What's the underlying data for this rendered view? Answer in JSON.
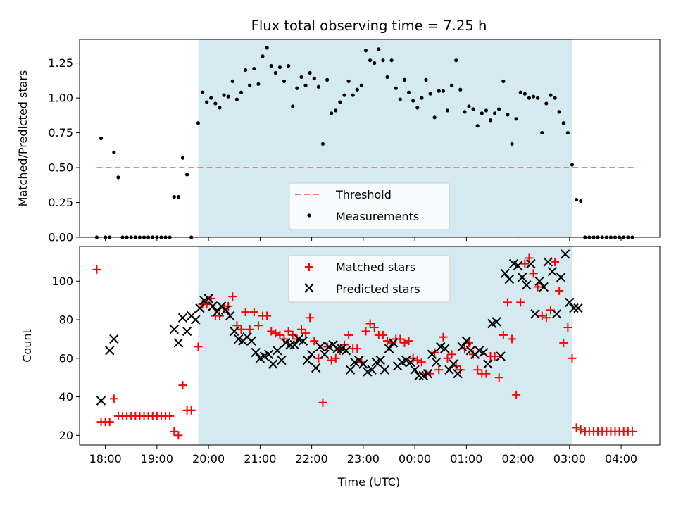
{
  "chart_data": [
    {
      "type": "scatter",
      "title": "Flux total observing time = 7.25 h",
      "xlabel": "",
      "ylabel": "Matched/Predicted stars",
      "ylim": [
        0,
        1.42
      ],
      "yticks": [
        "0.00",
        "0.25",
        "0.50",
        "0.75",
        "1.00",
        "1.25"
      ],
      "shaded_region": {
        "from": "19:48",
        "to": "03:03",
        "color": "#d4eaf0"
      },
      "threshold": {
        "name": "Threshold",
        "y": 0.5,
        "from": "17:50",
        "to": "04:15",
        "style": "dashed",
        "color": "#f08080"
      },
      "legend": {
        "placement": "lower-center",
        "entries": [
          "Threshold",
          "Measurements"
        ]
      },
      "series": [
        {
          "name": "Measurements",
          "marker": "dot",
          "color": "#000000",
          "x": [
            "17:50",
            "17:55",
            "18:00",
            "18:05",
            "18:10",
            "18:15",
            "18:20",
            "18:25",
            "18:30",
            "18:35",
            "18:40",
            "18:45",
            "18:50",
            "18:55",
            "19:00",
            "19:05",
            "19:10",
            "19:15",
            "19:20",
            "19:25",
            "19:30",
            "19:35",
            "19:40",
            "19:48",
            "19:53",
            "19:58",
            "20:03",
            "20:08",
            "20:13",
            "20:18",
            "20:23",
            "20:28",
            "20:33",
            "20:38",
            "20:43",
            "20:48",
            "20:53",
            "20:58",
            "21:03",
            "21:08",
            "21:13",
            "21:18",
            "21:23",
            "21:28",
            "21:33",
            "21:38",
            "21:43",
            "21:48",
            "21:53",
            "21:58",
            "22:03",
            "22:08",
            "22:13",
            "22:18",
            "22:23",
            "22:28",
            "22:33",
            "22:38",
            "22:43",
            "22:48",
            "22:53",
            "22:58",
            "23:03",
            "23:08",
            "23:13",
            "23:18",
            "23:23",
            "23:28",
            "23:33",
            "23:38",
            "23:43",
            "23:48",
            "23:53",
            "23:58",
            "00:03",
            "00:08",
            "00:13",
            "00:18",
            "00:23",
            "00:28",
            "00:33",
            "00:38",
            "00:43",
            "00:48",
            "00:53",
            "00:58",
            "01:03",
            "01:08",
            "01:13",
            "01:18",
            "01:23",
            "01:28",
            "01:33",
            "01:38",
            "01:43",
            "01:48",
            "01:53",
            "01:58",
            "02:03",
            "02:08",
            "02:13",
            "02:18",
            "02:23",
            "02:28",
            "02:33",
            "02:38",
            "02:43",
            "02:48",
            "02:53",
            "02:58",
            "03:03",
            "03:08",
            "03:13",
            "03:18",
            "03:23",
            "03:28",
            "03:33",
            "03:38",
            "03:43",
            "03:48",
            "03:53",
            "03:58",
            "04:03",
            "04:08",
            "04:13"
          ],
          "y": [
            0.0,
            0.71,
            0.0,
            0.0,
            0.61,
            0.43,
            0.0,
            0.0,
            0.0,
            0.0,
            0.0,
            0.0,
            0.0,
            0.0,
            0.0,
            0.0,
            0.0,
            0.0,
            0.29,
            0.29,
            0.57,
            0.45,
            0.0,
            0.82,
            1.04,
            0.97,
            1.0,
            0.96,
            0.93,
            1.02,
            1.01,
            1.12,
            0.99,
            1.04,
            1.2,
            1.09,
            1.21,
            1.1,
            1.3,
            1.36,
            1.23,
            1.18,
            1.22,
            1.12,
            1.23,
            0.94,
            1.07,
            1.15,
            1.09,
            1.18,
            1.14,
            1.08,
            0.67,
            1.13,
            0.89,
            0.91,
            0.97,
            1.02,
            1.12,
            1.02,
            1.06,
            1.09,
            1.34,
            1.27,
            1.25,
            1.35,
            1.27,
            1.15,
            1.27,
            1.07,
            0.99,
            1.13,
            1.04,
            0.98,
            0.93,
            1.0,
            1.13,
            1.03,
            0.86,
            1.05,
            1.05,
            0.91,
            1.09,
            1.27,
            1.06,
            0.9,
            0.94,
            0.92,
            0.8,
            0.89,
            0.91,
            0.84,
            0.89,
            0.92,
            1.12,
            0.88,
            0.67,
            0.85,
            1.04,
            1.03,
            1.0,
            1.01,
            1.0,
            0.75,
            0.96,
            1.02,
            1.0,
            0.9,
            0.82,
            0.75,
            0.52,
            0.27,
            0.26,
            0.0,
            0.0,
            0.0,
            0.0,
            0.0,
            0.0,
            0.0,
            0.0,
            0.0,
            0.0,
            0.0,
            0.0
          ]
        }
      ]
    },
    {
      "type": "scatter",
      "title": "",
      "xlabel": "Time (UTC)",
      "ylabel": "Count",
      "xlim": [
        "17:30",
        "04:45"
      ],
      "ylim": [
        15,
        118
      ],
      "yticks": [
        "20",
        "40",
        "60",
        "80",
        "100"
      ],
      "xticks": [
        "18:00",
        "19:00",
        "20:00",
        "21:00",
        "22:00",
        "23:00",
        "00:00",
        "01:00",
        "02:00",
        "03:00",
        "04:00"
      ],
      "shaded_region": {
        "from": "19:48",
        "to": "03:03",
        "color": "#d4eaf0"
      },
      "legend": {
        "placement": "top-center",
        "entries": [
          "Matched stars",
          "Predicted stars"
        ]
      },
      "series": [
        {
          "name": "Matched stars",
          "marker": "plus",
          "color": "#ff0000",
          "x": [
            "17:50",
            "17:55",
            "18:00",
            "18:05",
            "18:10",
            "18:15",
            "18:20",
            "18:25",
            "18:30",
            "18:35",
            "18:40",
            "18:45",
            "18:50",
            "18:55",
            "19:00",
            "19:05",
            "19:10",
            "19:15",
            "19:20",
            "19:25",
            "19:30",
            "19:35",
            "19:40",
            "19:48",
            "19:53",
            "19:58",
            "20:03",
            "20:08",
            "20:13",
            "20:18",
            "20:23",
            "20:28",
            "20:33",
            "20:38",
            "20:43",
            "20:48",
            "20:53",
            "20:58",
            "21:03",
            "21:08",
            "21:13",
            "21:18",
            "21:23",
            "21:28",
            "21:33",
            "21:38",
            "21:43",
            "21:48",
            "21:53",
            "21:58",
            "22:03",
            "22:08",
            "22:13",
            "22:18",
            "22:23",
            "22:28",
            "22:33",
            "22:38",
            "22:43",
            "22:48",
            "22:53",
            "22:58",
            "23:03",
            "23:08",
            "23:13",
            "23:18",
            "23:23",
            "23:28",
            "23:33",
            "23:38",
            "23:43",
            "23:48",
            "23:53",
            "23:58",
            "00:03",
            "00:08",
            "00:13",
            "00:18",
            "00:23",
            "00:28",
            "00:33",
            "00:38",
            "00:43",
            "00:48",
            "00:53",
            "00:58",
            "01:03",
            "01:08",
            "01:13",
            "01:18",
            "01:23",
            "01:28",
            "01:33",
            "01:38",
            "01:43",
            "01:48",
            "01:53",
            "01:58",
            "02:03",
            "02:08",
            "02:13",
            "02:18",
            "02:23",
            "02:28",
            "02:33",
            "02:38",
            "02:43",
            "02:48",
            "02:53",
            "02:58",
            "03:03",
            "03:08",
            "03:13",
            "03:18",
            "03:23",
            "03:28",
            "03:33",
            "03:38",
            "03:43",
            "03:48",
            "03:53",
            "03:58",
            "04:03",
            "04:08",
            "04:13"
          ],
          "y": [
            106,
            27,
            27,
            27,
            39,
            30,
            30,
            30,
            30,
            30,
            30,
            30,
            30,
            30,
            30,
            30,
            30,
            30,
            22,
            20,
            46,
            33,
            33,
            66,
            88,
            88,
            91,
            82,
            82,
            86,
            87,
            92,
            77,
            75,
            84,
            75,
            84,
            77,
            82,
            82,
            74,
            73,
            72,
            70,
            74,
            72,
            70,
            75,
            73,
            81,
            69,
            60,
            37,
            66,
            59,
            60,
            64,
            67,
            72,
            65,
            65,
            58,
            74,
            78,
            76,
            72,
            72,
            69,
            68,
            70,
            70,
            68,
            69,
            60,
            59,
            58,
            52,
            52,
            63,
            54,
            71,
            60,
            62,
            56,
            54,
            65,
            68,
            62,
            54,
            52,
            52,
            61,
            61,
            50,
            72,
            89,
            70,
            41,
            89,
            109,
            112,
            104,
            97,
            82,
            81,
            85,
            110,
            95,
            68,
            76,
            60,
            24,
            23,
            22,
            22,
            22,
            22,
            22,
            22,
            22,
            22,
            22,
            22,
            22,
            22
          ]
        },
        {
          "name": "Predicted stars",
          "marker": "x",
          "color": "#000000",
          "x": [
            "17:55",
            "18:05",
            "18:10",
            "19:20",
            "19:25",
            "19:30",
            "19:35",
            "19:40",
            "19:45",
            "19:50",
            "19:55",
            "20:00",
            "20:05",
            "20:10",
            "20:15",
            "20:20",
            "20:25",
            "20:30",
            "20:35",
            "20:40",
            "20:45",
            "20:50",
            "20:55",
            "21:00",
            "21:05",
            "21:10",
            "21:15",
            "21:20",
            "21:25",
            "21:30",
            "21:35",
            "21:40",
            "21:45",
            "21:50",
            "21:55",
            "22:00",
            "22:05",
            "22:10",
            "22:15",
            "22:20",
            "22:25",
            "22:30",
            "22:35",
            "22:40",
            "22:45",
            "22:50",
            "22:55",
            "23:00",
            "23:05",
            "23:10",
            "23:15",
            "23:20",
            "23:25",
            "23:30",
            "23:35",
            "23:40",
            "23:45",
            "23:50",
            "23:55",
            "00:00",
            "00:05",
            "00:10",
            "00:15",
            "00:20",
            "00:25",
            "00:30",
            "00:35",
            "00:40",
            "00:45",
            "00:50",
            "00:55",
            "01:00",
            "01:05",
            "01:10",
            "01:15",
            "01:20",
            "01:25",
            "01:30",
            "01:35",
            "01:40",
            "01:45",
            "01:50",
            "01:55",
            "02:00",
            "02:05",
            "02:10",
            "02:15",
            "02:20",
            "02:25",
            "02:30",
            "02:35",
            "02:40",
            "02:45",
            "02:50",
            "02:55",
            "03:00",
            "03:05",
            "03:10"
          ],
          "y": [
            38,
            64,
            70,
            75,
            68,
            81,
            74,
            82,
            80,
            86,
            90,
            91,
            87,
            84,
            87,
            85,
            82,
            74,
            70,
            69,
            71,
            69,
            63,
            60,
            61,
            62,
            57,
            64,
            59,
            68,
            67,
            67,
            70,
            69,
            59,
            62,
            55,
            66,
            62,
            66,
            67,
            65,
            65,
            64,
            54,
            58,
            59,
            57,
            53,
            54,
            58,
            59,
            54,
            65,
            68,
            56,
            58,
            59,
            58,
            54,
            51,
            51,
            52,
            62,
            58,
            66,
            65,
            54,
            57,
            52,
            66,
            69,
            64,
            62,
            64,
            63,
            57,
            78,
            79,
            61,
            104,
            101,
            109,
            108,
            102,
            98,
            109,
            83,
            100,
            97,
            110,
            105,
            83,
            102,
            114,
            89,
            86,
            86
          ]
        }
      ]
    }
  ]
}
